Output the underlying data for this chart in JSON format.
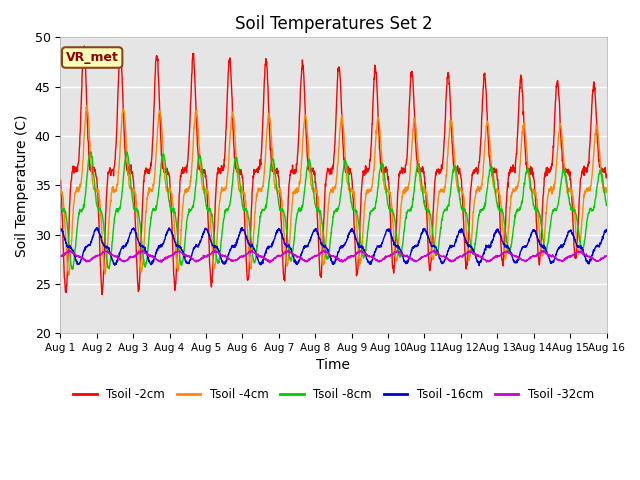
{
  "title": "Soil Temperatures Set 2",
  "xlabel": "Time",
  "ylabel": "Soil Temperature (C)",
  "ylim": [
    20,
    50
  ],
  "xlim": [
    0,
    15
  ],
  "xtick_labels": [
    "Aug 1",
    "Aug 2",
    "Aug 3",
    "Aug 4",
    "Aug 5",
    "Aug 6",
    "Aug 7",
    "Aug 8",
    "Aug 9",
    "Aug 10",
    "Aug 11",
    "Aug 12",
    "Aug 13",
    "Aug 14",
    "Aug 15",
    "Aug 16"
  ],
  "ytick_labels": [
    "20",
    "25",
    "30",
    "35",
    "40",
    "45",
    "50"
  ],
  "yticks": [
    20,
    25,
    30,
    35,
    40,
    45,
    50
  ],
  "label_box_text": "VR_met",
  "series_colors": {
    "Tsoil -2cm": "#ff0000",
    "Tsoil -4cm": "#ff8800",
    "Tsoil -8cm": "#00cc00",
    "Tsoil -16cm": "#0000dd",
    "Tsoil -32cm": "#cc00cc"
  },
  "bg_color": "#e5e5e5",
  "fig_bg_color": "#ffffff",
  "linewidth": 1.0,
  "n_points": 2000
}
